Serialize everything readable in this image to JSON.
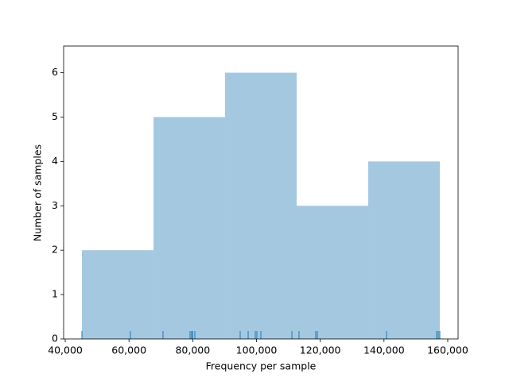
{
  "chart_data": {
    "type": "histogram",
    "x_label": "Frequency per sample",
    "y_label": "Number of samples",
    "bins": [
      45240,
      67700,
      90150,
      112600,
      135060,
      157515
    ],
    "values": [
      2,
      5,
      6,
      3,
      4
    ],
    "color": "#a5c8e1",
    "rug": [
      45240,
      60460,
      70690,
      79170,
      79670,
      79920,
      80670,
      94890,
      97390,
      99630,
      100130,
      101380,
      111110,
      113350,
      118590,
      119090,
      140800,
      156520,
      157020,
      157515
    ],
    "rug_color": "#1f77b4",
    "xlim": [
      39500,
      163250
    ],
    "ylim": [
      0,
      6.6
    ],
    "xticks": [
      {
        "value": 40000,
        "label": "40,000"
      },
      {
        "value": 60000,
        "label": "60,000"
      },
      {
        "value": 80000,
        "label": "80,000"
      },
      {
        "value": 100000,
        "label": "100,000"
      },
      {
        "value": 120000,
        "label": "120,000"
      },
      {
        "value": 140000,
        "label": "140,000"
      },
      {
        "value": 160000,
        "label": "160,000"
      }
    ],
    "yticks": [
      0,
      1,
      2,
      3,
      4,
      5,
      6
    ]
  }
}
